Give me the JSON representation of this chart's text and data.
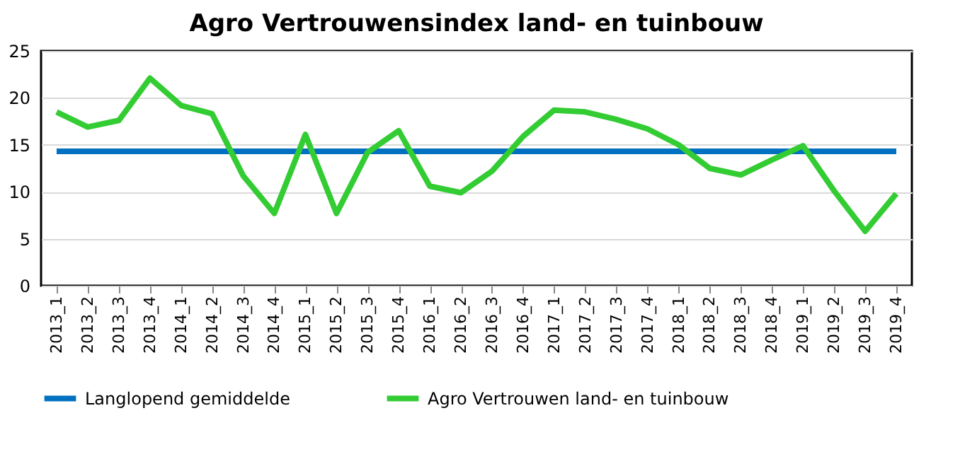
{
  "chart_data": {
    "type": "line",
    "title": "Agro Vertrouwensindex land- en tuinbouw",
    "categories": [
      "2013_1",
      "2013_2",
      "2013_3",
      "2013_4",
      "2014_1",
      "2014_2",
      "2014_3",
      "2014_4",
      "2015_1",
      "2015_2",
      "2015_3",
      "2015_4",
      "2016_1",
      "2016_2",
      "2016_3",
      "2016_4",
      "2017_1",
      "2017_2",
      "2017_3",
      "2017_4",
      "2018_1",
      "2018_2",
      "2018_3",
      "2018_4",
      "2019_1",
      "2019_2",
      "2019_3",
      "2019_4"
    ],
    "series": [
      {
        "name": "Langlopend gemiddelde",
        "color": "#0070c0",
        "values": [
          14.3,
          14.3,
          14.3,
          14.3,
          14.3,
          14.3,
          14.3,
          14.3,
          14.3,
          14.3,
          14.3,
          14.3,
          14.3,
          14.3,
          14.3,
          14.3,
          14.3,
          14.3,
          14.3,
          14.3,
          14.3,
          14.3,
          14.3,
          14.3,
          14.3,
          14.3,
          14.3,
          14.3
        ]
      },
      {
        "name": "Agro Vertrouwen land- en tuinbouw",
        "color": "#33cc33",
        "values": [
          18.5,
          16.9,
          17.6,
          22.1,
          19.2,
          18.3,
          11.7,
          7.7,
          16.1,
          7.7,
          14.2,
          16.5,
          10.6,
          9.9,
          12.2,
          15.9,
          18.7,
          18.5,
          17.7,
          16.7,
          15.0,
          12.5,
          11.8,
          13.4,
          14.9,
          10.1,
          5.8,
          9.8
        ]
      }
    ],
    "ylim": [
      0,
      25
    ],
    "yticks": [
      0,
      5,
      10,
      15,
      20,
      25
    ],
    "grid": "y",
    "legend": "bottom",
    "marker": "none",
    "line_style": "solid"
  }
}
